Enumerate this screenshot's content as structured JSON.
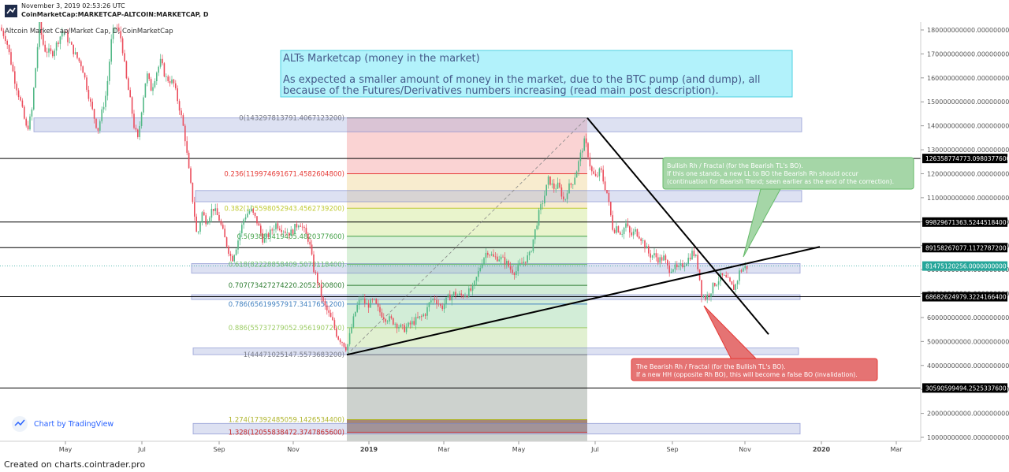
{
  "header": {
    "datetime": "November 3, 2019 02:53:26 UTC",
    "symbol_line": "CoinMarketCap:MARKETCAP-ALTCOIN:MARKETCAP, D"
  },
  "chart_title": "Altcoin Market Cap/Market Cap, D, CoinMarketCap",
  "footer": "Created on charts.cointrader.pro",
  "watermark": "Chart by TradingView",
  "colors": {
    "up": "#53b987",
    "down": "#eb4d5c",
    "fib_red": "#e53935",
    "trend": "#000000",
    "note_blue_bg": "#b2f2fb",
    "note_green_bg": "#a5d6a7",
    "note_red_bg": "#e57373",
    "last_price_bg": "#26a69a",
    "zone": "#9fa8da"
  },
  "annotations": {
    "main_title": "ALTs Marketcap (money in the market)",
    "main_body_1": "As expected a smaller amount of money in the market, due to the BTC pump (and dump), all",
    "main_body_2": "because of the Futures/Derivatives numbers increasing (read main post description).",
    "green_1": "Bullish Rh / Fractal (for the Bearish TL's BO).",
    "green_2": "If this one stands, a new LL to BO the Bearish Rh should occur",
    "green_3": "(continuation for Bearish Trend; seen earlier as the end of the correction).",
    "red_1": "The Bearish Rh / Fractal (for the Bullish TL's BO).",
    "red_2": "If a new HH (opposite Rh BO), this will become a false BO (invalidation)."
  },
  "chart_data": {
    "type": "candlestick",
    "x_labels": [
      "May",
      "Jul",
      "Sep",
      "Nov",
      "2019",
      "Mar",
      "May",
      "Jul",
      "Sep",
      "Nov",
      "2020",
      "Mar"
    ],
    "y_ticks": [
      "180000000000.0000000000",
      "170000000000.0000000000",
      "160000000000.0000000000",
      "150000000000.0000000000",
      "140000000000.0000000000",
      "130000000000.0000000000",
      "120000000000.0000000000",
      "110000000000.0000000000",
      "100000000000.0000000000",
      "90000000000.0000000000",
      "80000000000.0000000000",
      "70000000000.0000000000",
      "60000000000.0000000000",
      "50000000000.0000000000",
      "40000000000.0000000000",
      "30000000000.0000000000",
      "20000000000.0000000000",
      "10000000000.0000000000"
    ],
    "y_tick_values": [
      180,
      170,
      160,
      150,
      140,
      130,
      120,
      110,
      100,
      90,
      80,
      70,
      60,
      50,
      40,
      30,
      20,
      10
    ],
    "horizontal_levels": [
      {
        "label": "126358774773.0980377600",
        "value": 126.36
      },
      {
        "label": "99829671363.5244518400",
        "value": 99.83
      },
      {
        "label": "89158267077.1172787200",
        "value": 89.16
      },
      {
        "label": "68682624979.3224166400",
        "value": 68.68
      },
      {
        "label": "30590599494.2525337600",
        "value": 30.59
      }
    ],
    "last_price": {
      "label": "81475120256.0000000000",
      "value": 81.48
    },
    "fib_levels": [
      {
        "label": "0(143297813791.4067123200)",
        "value": 143.3,
        "color": "#787b86"
      },
      {
        "label": "0.236(119974691671.4582604800)",
        "value": 119.97,
        "color": "#e53935"
      },
      {
        "label": "0.382(105598052943.4562739200)",
        "value": 105.6,
        "color": "#c0ca33"
      },
      {
        "label": "0.5(93883419405.4820377600)",
        "value": 93.88,
        "color": "#43a047"
      },
      {
        "label": "0.618(82228858409.5078118400)",
        "value": 82.23,
        "color": "#66bb6a"
      },
      {
        "label": "0.707(73427274220.2052300800)",
        "value": 73.43,
        "color": "#2e7d32"
      },
      {
        "label": "0.786(65619957917.3417651200)",
        "value": 65.62,
        "color": "#3f7fbf"
      },
      {
        "label": "0.886(55737279052.9561907200)",
        "value": 55.74,
        "color": "#9ccc65"
      },
      {
        "label": "1(44471025147.5573683200)",
        "value": 44.47,
        "color": "#787b86"
      },
      {
        "label": "1.274(17392485059.1426534400)",
        "value": 17.39,
        "color": "#afb42b"
      },
      {
        "label": "1.328(12055838472.3747865600)",
        "value": 12.06,
        "color": "#c62828"
      }
    ],
    "ylim": [
      5,
      184
    ],
    "keypoints": [
      [
        0,
        181
      ],
      [
        8,
        176
      ],
      [
        18,
        160
      ],
      [
        26,
        150
      ],
      [
        34,
        138
      ],
      [
        40,
        145
      ],
      [
        50,
        182
      ],
      [
        56,
        172
      ],
      [
        66,
        170
      ],
      [
        80,
        180
      ],
      [
        95,
        170
      ],
      [
        104,
        165
      ],
      [
        115,
        149
      ],
      [
        124,
        138
      ],
      [
        135,
        154
      ],
      [
        142,
        178
      ],
      [
        147,
        182
      ],
      [
        154,
        176
      ],
      [
        160,
        160
      ],
      [
        166,
        149
      ],
      [
        170,
        140
      ],
      [
        175,
        134
      ],
      [
        180,
        148
      ],
      [
        186,
        162
      ],
      [
        192,
        155
      ],
      [
        198,
        162
      ],
      [
        204,
        167
      ],
      [
        210,
        160
      ],
      [
        220,
        158
      ],
      [
        228,
        147
      ],
      [
        234,
        137
      ],
      [
        240,
        120
      ],
      [
        246,
        105
      ],
      [
        250,
        93
      ],
      [
        256,
        104
      ],
      [
        262,
        100
      ],
      [
        270,
        106
      ],
      [
        278,
        101
      ],
      [
        286,
        92
      ],
      [
        294,
        84
      ],
      [
        300,
        90
      ],
      [
        310,
        102
      ],
      [
        318,
        105
      ],
      [
        326,
        100
      ],
      [
        334,
        92
      ],
      [
        342,
        95
      ],
      [
        350,
        99
      ],
      [
        358,
        97
      ],
      [
        368,
        95
      ],
      [
        380,
        100
      ],
      [
        386,
        96
      ],
      [
        392,
        92
      ],
      [
        398,
        80
      ],
      [
        404,
        74
      ],
      [
        410,
        66
      ],
      [
        416,
        62
      ],
      [
        422,
        58
      ],
      [
        428,
        52
      ],
      [
        434,
        50
      ],
      [
        440,
        47
      ],
      [
        446,
        56
      ],
      [
        452,
        64
      ],
      [
        458,
        68
      ],
      [
        466,
        65
      ],
      [
        474,
        67
      ],
      [
        480,
        63
      ],
      [
        488,
        60
      ],
      [
        496,
        59
      ],
      [
        504,
        57
      ],
      [
        512,
        55
      ],
      [
        520,
        57
      ],
      [
        528,
        59
      ],
      [
        534,
        60
      ],
      [
        540,
        62
      ],
      [
        546,
        67
      ],
      [
        552,
        68
      ],
      [
        560,
        64
      ],
      [
        568,
        68
      ],
      [
        576,
        70
      ],
      [
        584,
        69
      ],
      [
        592,
        70
      ],
      [
        600,
        72
      ],
      [
        606,
        78
      ],
      [
        612,
        84
      ],
      [
        618,
        88
      ],
      [
        626,
        85
      ],
      [
        634,
        85
      ],
      [
        642,
        83
      ],
      [
        648,
        80
      ],
      [
        654,
        79
      ],
      [
        660,
        82
      ],
      [
        666,
        84
      ],
      [
        672,
        86
      ],
      [
        678,
        95
      ],
      [
        684,
        104
      ],
      [
        690,
        110
      ],
      [
        696,
        118
      ],
      [
        702,
        114
      ],
      [
        708,
        115
      ],
      [
        712,
        112
      ],
      [
        716,
        108
      ],
      [
        720,
        114
      ],
      [
        726,
        116
      ],
      [
        732,
        122
      ],
      [
        738,
        130
      ],
      [
        742,
        134
      ],
      [
        746,
        128
      ],
      [
        750,
        121
      ],
      [
        756,
        118
      ],
      [
        762,
        122
      ],
      [
        766,
        116
      ],
      [
        770,
        112
      ],
      [
        774,
        104
      ],
      [
        778,
        96
      ],
      [
        782,
        98
      ],
      [
        788,
        95
      ],
      [
        794,
        99
      ],
      [
        800,
        94
      ],
      [
        806,
        96
      ],
      [
        812,
        94
      ],
      [
        818,
        90
      ],
      [
        824,
        86
      ],
      [
        830,
        86
      ],
      [
        836,
        84
      ],
      [
        842,
        85
      ],
      [
        848,
        80
      ],
      [
        854,
        81
      ],
      [
        860,
        80
      ],
      [
        866,
        82
      ],
      [
        872,
        84
      ],
      [
        878,
        87
      ],
      [
        882,
        86
      ],
      [
        886,
        80
      ],
      [
        890,
        70
      ],
      [
        894,
        68
      ],
      [
        900,
        70
      ],
      [
        906,
        74
      ],
      [
        910,
        75
      ],
      [
        914,
        77
      ],
      [
        918,
        77
      ],
      [
        924,
        75
      ],
      [
        930,
        72
      ],
      [
        934,
        74
      ],
      [
        938,
        79
      ],
      [
        944,
        81
      ],
      [
        948,
        81
      ]
    ]
  }
}
